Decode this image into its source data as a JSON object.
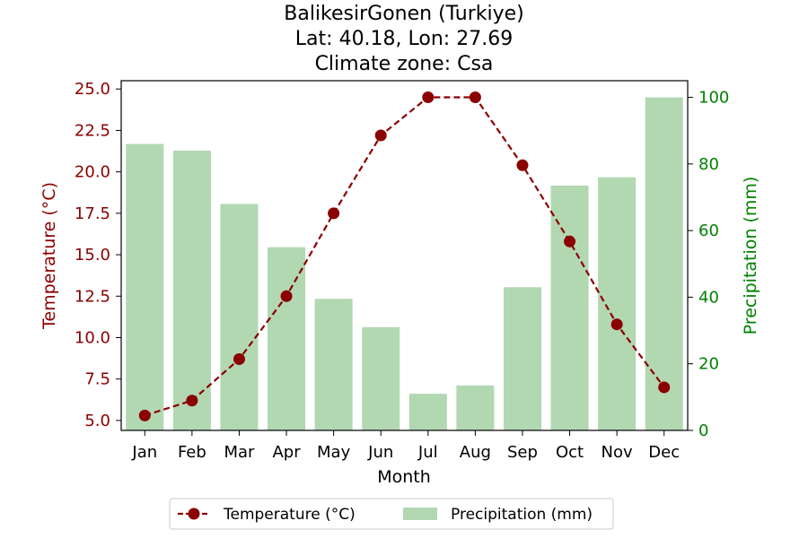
{
  "chart_data": {
    "type": "bar",
    "title_lines": [
      "BalikesirGonen (Turkiye)",
      "Lat: 40.18, Lon: 27.69",
      "Climate zone: Csa"
    ],
    "xlabel": "Month",
    "ylabel_left": "Temperature (°C)",
    "ylabel_right": "Precipitation (mm)",
    "categories": [
      "Jan",
      "Feb",
      "Mar",
      "Apr",
      "May",
      "Jun",
      "Jul",
      "Aug",
      "Sep",
      "Oct",
      "Nov",
      "Dec"
    ],
    "ylim_left": [
      4.4,
      25.5
    ],
    "ylim_right": [
      0,
      105
    ],
    "yticks_left": [
      "5.0",
      "7.5",
      "10.0",
      "12.5",
      "15.0",
      "17.5",
      "20.0",
      "22.5",
      "25.0"
    ],
    "yticks_right": [
      "0",
      "20",
      "40",
      "60",
      "80",
      "100"
    ],
    "series": [
      {
        "name": "Temperature (°C)",
        "type": "line",
        "axis": "left",
        "color": "#8b0000",
        "values": [
          5.3,
          6.2,
          8.7,
          12.5,
          17.5,
          22.2,
          24.5,
          24.5,
          20.4,
          15.8,
          10.8,
          7.0
        ]
      },
      {
        "name": "Precipitation (mm)",
        "type": "bar",
        "axis": "right",
        "color": "#b2d8b2",
        "values": [
          86,
          84,
          68,
          55,
          39.5,
          31,
          11,
          13.5,
          43,
          73.5,
          76,
          100
        ]
      }
    ],
    "colors": {
      "left_axis": "#8b0000",
      "right_axis": "#008000"
    },
    "legend": {
      "position": "bottom-center"
    }
  }
}
